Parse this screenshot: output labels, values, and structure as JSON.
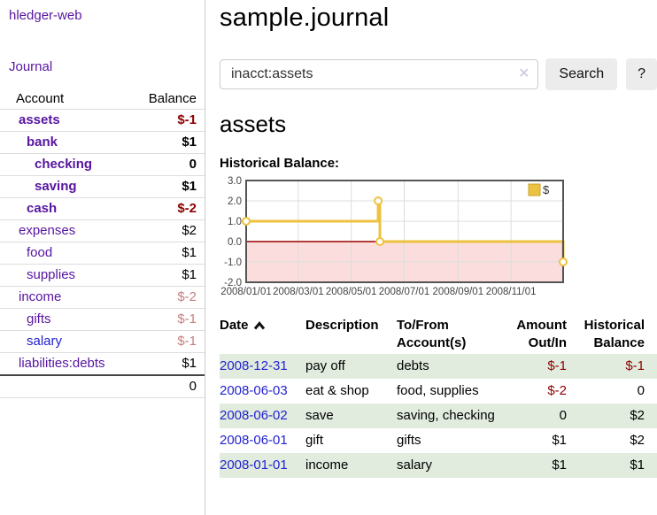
{
  "app": {
    "title": "hledger-web",
    "nav_journal": "Journal"
  },
  "sidebar": {
    "columns": {
      "account": "Account",
      "balance": "Balance"
    },
    "accounts": [
      {
        "name": "assets",
        "balance": "$-1",
        "indent": 1,
        "bold": true,
        "bal_class": "neg"
      },
      {
        "name": "bank",
        "balance": "$1",
        "indent": 2,
        "bold": true,
        "bal_class": ""
      },
      {
        "name": "checking",
        "balance": "0",
        "indent": 3,
        "bold": true,
        "bal_class": ""
      },
      {
        "name": "saving",
        "balance": "$1",
        "indent": 3,
        "bold": true,
        "bal_class": ""
      },
      {
        "name": "cash",
        "balance": "$-2",
        "indent": 2,
        "bold": true,
        "bal_class": "neg"
      },
      {
        "name": "expenses",
        "balance": "$2",
        "indent": 1,
        "bold": false,
        "bal_class": ""
      },
      {
        "name": "food",
        "balance": "$1",
        "indent": 2,
        "bold": false,
        "bal_class": ""
      },
      {
        "name": "supplies",
        "balance": "$1",
        "indent": 2,
        "bold": false,
        "bal_class": ""
      },
      {
        "name": "income",
        "balance": "$-2",
        "indent": 1,
        "bold": false,
        "bal_class": "neg-soft"
      },
      {
        "name": "gifts",
        "balance": "$-1",
        "indent": 2,
        "bold": false,
        "bal_class": "neg-soft"
      },
      {
        "name": "salary",
        "balance": "$-1",
        "indent": 2,
        "bold": false,
        "bal_class": "neg-soft",
        "link_blue": true
      },
      {
        "name": "liabilities:debts",
        "balance": "$1",
        "indent": 1,
        "bold": false,
        "bal_class": ""
      }
    ],
    "total": "0"
  },
  "header": {
    "title": "sample.journal"
  },
  "search": {
    "value": "inacct:assets",
    "clear_icon": "✕",
    "button": "Search",
    "help_button": "?"
  },
  "account_page": {
    "title": "assets",
    "chart_label": "Historical Balance:"
  },
  "chart_data": {
    "type": "line",
    "step": true,
    "title": "Historical Balance of assets",
    "series": [
      {
        "name": "$",
        "points": [
          [
            "2008-01-01",
            1
          ],
          [
            "2008-06-01",
            2
          ],
          [
            "2008-06-03",
            0
          ],
          [
            "2008-12-31",
            -1
          ]
        ]
      }
    ],
    "x_ticks": [
      "2008/01/01",
      "2008/03/01",
      "2008/05/01",
      "2008/07/01",
      "2008/09/01",
      "2008/11/01"
    ],
    "y_ticks": [
      "3.0",
      "2.0",
      "1.0",
      "0.0",
      "-1.0",
      "-2.0"
    ],
    "ylim": [
      -2,
      3
    ],
    "grid": true,
    "legend": {
      "label": "$",
      "position": "top-right"
    },
    "colors": {
      "line": "#edc240",
      "marker_fill": "#ffffff",
      "negative_area": "#fbdddd",
      "zero_line": "#990000",
      "grid_line": "#dddddd",
      "border": "#545454"
    }
  },
  "register": {
    "columns": [
      "Date",
      "Description",
      "To/From Account(s)",
      "Amount Out/In",
      "Historical Balance"
    ],
    "sort_icon": "chevron-up-icon",
    "rows": [
      {
        "date": "2008-12-31",
        "description": "pay off",
        "accounts": "debts",
        "amount": "$-1",
        "balance": "$-1",
        "amount_neg": true,
        "balance_neg": true,
        "shaded": true
      },
      {
        "date": "2008-06-03",
        "description": "eat & shop",
        "accounts": "food, supplies",
        "amount": "$-2",
        "balance": "0",
        "amount_neg": true,
        "balance_neg": false,
        "shaded": false
      },
      {
        "date": "2008-06-02",
        "description": "save",
        "accounts": "saving, checking",
        "amount": "0",
        "balance": "$2",
        "amount_neg": false,
        "balance_neg": false,
        "shaded": true
      },
      {
        "date": "2008-06-01",
        "description": "gift",
        "accounts": "gifts",
        "amount": "$1",
        "balance": "$2",
        "amount_neg": false,
        "balance_neg": false,
        "shaded": false
      },
      {
        "date": "2008-01-01",
        "description": "income",
        "accounts": "salary",
        "amount": "$1",
        "balance": "$1",
        "amount_neg": false,
        "balance_neg": false,
        "shaded": true
      }
    ]
  },
  "colors": {
    "link_purple": "#5615a0",
    "link_blue": "#2323cf",
    "negative": "#8f0000",
    "negative_soft": "#c57f7f",
    "row_green": "#e1ecdf"
  }
}
